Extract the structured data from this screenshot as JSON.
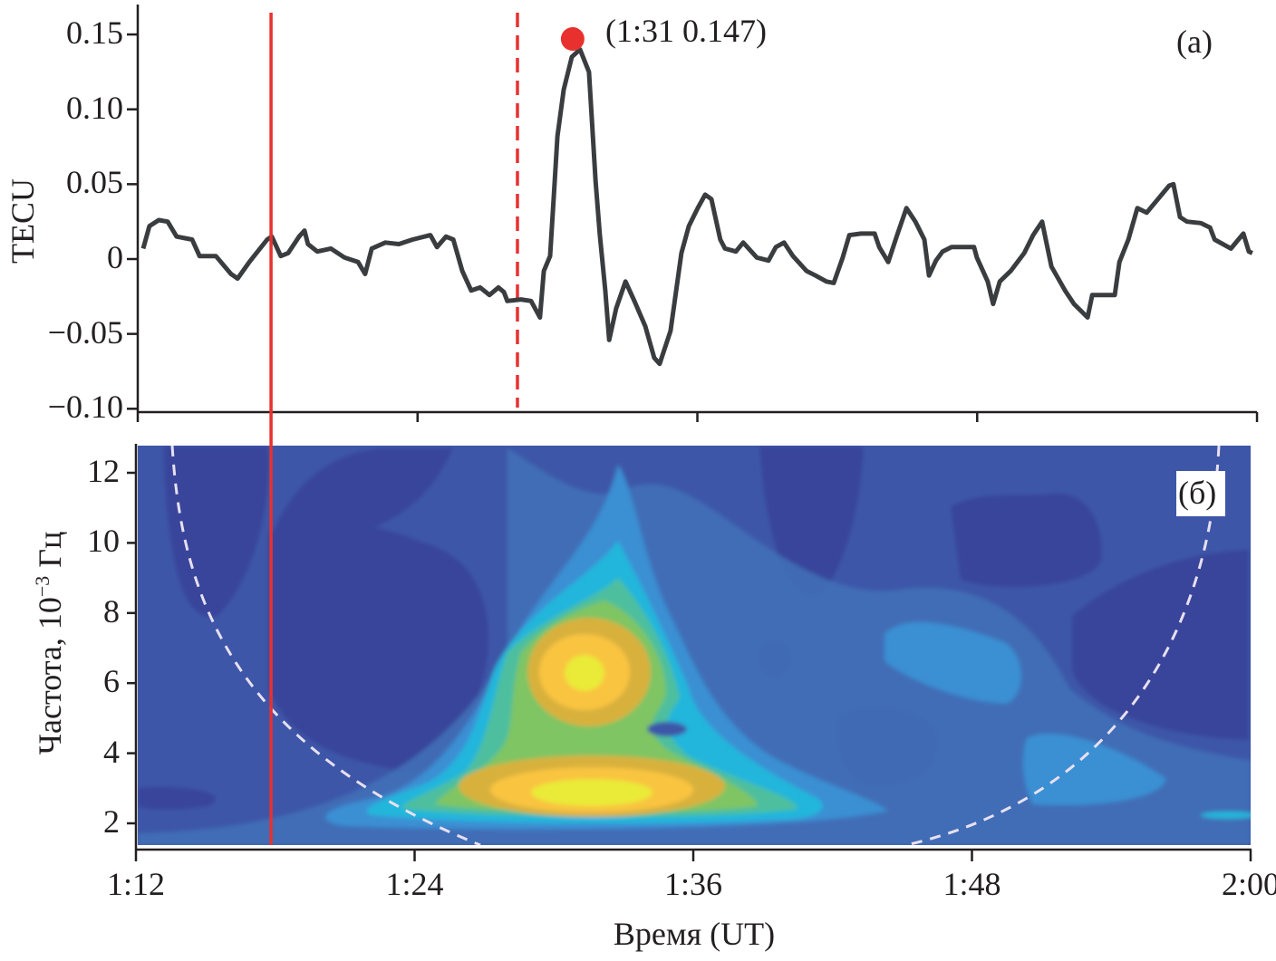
{
  "chart_data": [
    {
      "type": "line",
      "panel_label": "(a)",
      "ylabel": "TECU",
      "xlim": [
        "1:12",
        "2:00"
      ],
      "ylim": [
        -0.1,
        0.15
      ],
      "yticks": [
        0.15,
        0.1,
        0.05,
        0,
        -0.05,
        -0.1
      ],
      "ytick_labels": [
        "0.15",
        "0.10",
        "0.05",
        "0",
        "−0.05",
        "−0.10"
      ],
      "xticks": [
        "1:12",
        "1:24",
        "1:36",
        "1:48",
        "2:00"
      ],
      "line_color": "#3a3d3f",
      "series": [
        {
          "x": [
            "1:12:14",
            "1:12:30",
            "1:12:54",
            "1:13:17",
            "1:13:40",
            "1:14:20",
            "1:14:39",
            "1:15:21",
            "1:16:00",
            "1:16:17",
            "1:16:47",
            "1:17:33",
            "1:17:45",
            "1:18:08",
            "1:18:27",
            "1:18:55",
            "1:19:09",
            "1:19:18",
            "1:19:42",
            "1:20:17",
            "1:20:52",
            "1:21:27",
            "1:21:45",
            "1:22:02",
            "1:22:37",
            "1:23:12",
            "1:23:47",
            "1:24:33",
            "1:24:50",
            "1:25:13",
            "1:25:32",
            "1:25:55",
            "1:26:18",
            "1:26:41",
            "1:27:05",
            "1:27:28",
            "1:27:42",
            "1:27:51",
            "1:28:26",
            "1:28:52",
            "1:29:15",
            "1:29:25",
            "1:29:41",
            "1:29:50",
            "1:30:00",
            "1:30:16",
            "1:30:37",
            "1:30:58",
            "1:31:21",
            "1:31:38",
            "1:31:49",
            "1:32:03",
            "1:32:13",
            "1:32:31",
            "1:32:55",
            "1:33:18",
            "1:33:46",
            "1:34:09",
            "1:34:23",
            "1:34:51",
            "1:35:19",
            "1:35:38",
            "1:36:01",
            "1:36:20",
            "1:36:36",
            "1:36:59",
            "1:37:11",
            "1:37:39",
            "1:37:58",
            "1:38:12",
            "1:38:33",
            "1:39:03",
            "1:39:22",
            "1:39:43",
            "1:40:06",
            "1:40:41",
            "1:41:04",
            "1:41:32",
            "1:41:51",
            "1:42:14",
            "1:42:31",
            "1:43:01",
            "1:43:36",
            "1:43:48",
            "1:44:11",
            "1:44:34",
            "1:44:58",
            "1:45:21",
            "1:45:44",
            "1:45:56",
            "1:46:14",
            "1:46:31",
            "1:46:54",
            "1:47:52",
            "1:47:59",
            "1:48:27",
            "1:48:41",
            "1:48:58",
            "1:49:26",
            "1:50:01",
            "1:50:24",
            "1:50:47",
            "1:50:59",
            "1:51:11",
            "1:51:46",
            "1:52:09",
            "1:52:44",
            "1:52:56",
            "1:53:54",
            "1:54:06",
            "1:54:29",
            "1:54:52",
            "1:55:16",
            "1:56:14",
            "1:56:25",
            "1:56:42",
            "1:57:00",
            "1:57:35",
            "1:57:59",
            "1:58:11",
            "1:58:53",
            "1:59:25",
            "1:59:39",
            "1:59:48"
          ],
          "y": [
            0.007,
            0.022,
            0.026,
            0.025,
            0.015,
            0.013,
            0.002,
            0.002,
            -0.01,
            -0.013,
            -0.002,
            0.013,
            0.015,
            0.002,
            0.004,
            0.015,
            0.019,
            0.01,
            0.005,
            0.007,
            0.001,
            -0.002,
            -0.01,
            0.007,
            0.011,
            0.01,
            0.013,
            0.016,
            0.008,
            0.015,
            0.013,
            -0.008,
            -0.021,
            -0.019,
            -0.024,
            -0.019,
            -0.022,
            -0.028,
            -0.027,
            -0.028,
            -0.039,
            -0.008,
            0.002,
            0.04,
            0.082,
            0.113,
            0.135,
            0.14,
            0.125,
            0.052,
            0.016,
            -0.021,
            -0.054,
            -0.033,
            -0.015,
            -0.028,
            -0.045,
            -0.066,
            -0.07,
            -0.048,
            0.004,
            0.022,
            0.034,
            0.043,
            0.04,
            0.013,
            0.007,
            0.005,
            0.011,
            0.007,
            0.001,
            -0.001,
            0.008,
            0.011,
            0.002,
            -0.008,
            -0.011,
            -0.015,
            -0.016,
            0.001,
            0.016,
            0.017,
            0.017,
            0.008,
            -0.002,
            0.016,
            0.034,
            0.025,
            0.013,
            -0.011,
            -0.001,
            0.005,
            0.008,
            0.008,
            0.001,
            -0.015,
            -0.03,
            -0.015,
            -0.008,
            0.004,
            0.016,
            0.025,
            0.01,
            -0.005,
            -0.021,
            -0.03,
            -0.039,
            -0.024,
            -0.024,
            -0.002,
            0.013,
            0.034,
            0.031,
            0.049,
            0.05,
            0.028,
            0.025,
            0.024,
            0.021,
            0.013,
            0.007,
            0.017,
            0.005,
            0.004
          ]
        }
      ],
      "marker": {
        "x": "1:31",
        "y": 0.147,
        "label": "(1:31 0.147)",
        "color": "#e8312f"
      },
      "vertical_lines": [
        {
          "x": "1:17:43",
          "style": "solid",
          "color": "#e8312f"
        },
        {
          "x": "1:28:17",
          "style": "dashed",
          "color": "#e8312f"
        }
      ]
    },
    {
      "type": "heatmap",
      "panel_label": "(б)",
      "xlabel": "Время (UT)",
      "ylabel_main": "Частота, 10",
      "ylabel_exp": "−3",
      "ylabel_unit": " Гц",
      "xlim": [
        "1:12",
        "2:00"
      ],
      "ylim": [
        1.4,
        12.9
      ],
      "yticks": [
        12,
        10,
        8,
        6,
        4,
        2
      ],
      "ytick_labels": [
        "12",
        "10",
        "8",
        "6",
        "4",
        "2"
      ],
      "xticks": [
        "1:12",
        "1:24",
        "1:36",
        "1:48",
        "2:00"
      ],
      "colormap": [
        "#39449a",
        "#3d56a8",
        "#4271b8",
        "#3b8fd3",
        "#22b6dc",
        "#4ebf9e",
        "#7fc563",
        "#d8b13c",
        "#f9c440",
        "#eaea38"
      ],
      "peaks": [
        {
          "time": "1:31:00",
          "frequency": 6.3,
          "level": "max"
        },
        {
          "time": "1:31:10",
          "frequency": 2.8,
          "level": "max"
        }
      ],
      "cone_of_influence": {
        "style": "dashed",
        "color": "#e8e0f0"
      }
    }
  ]
}
